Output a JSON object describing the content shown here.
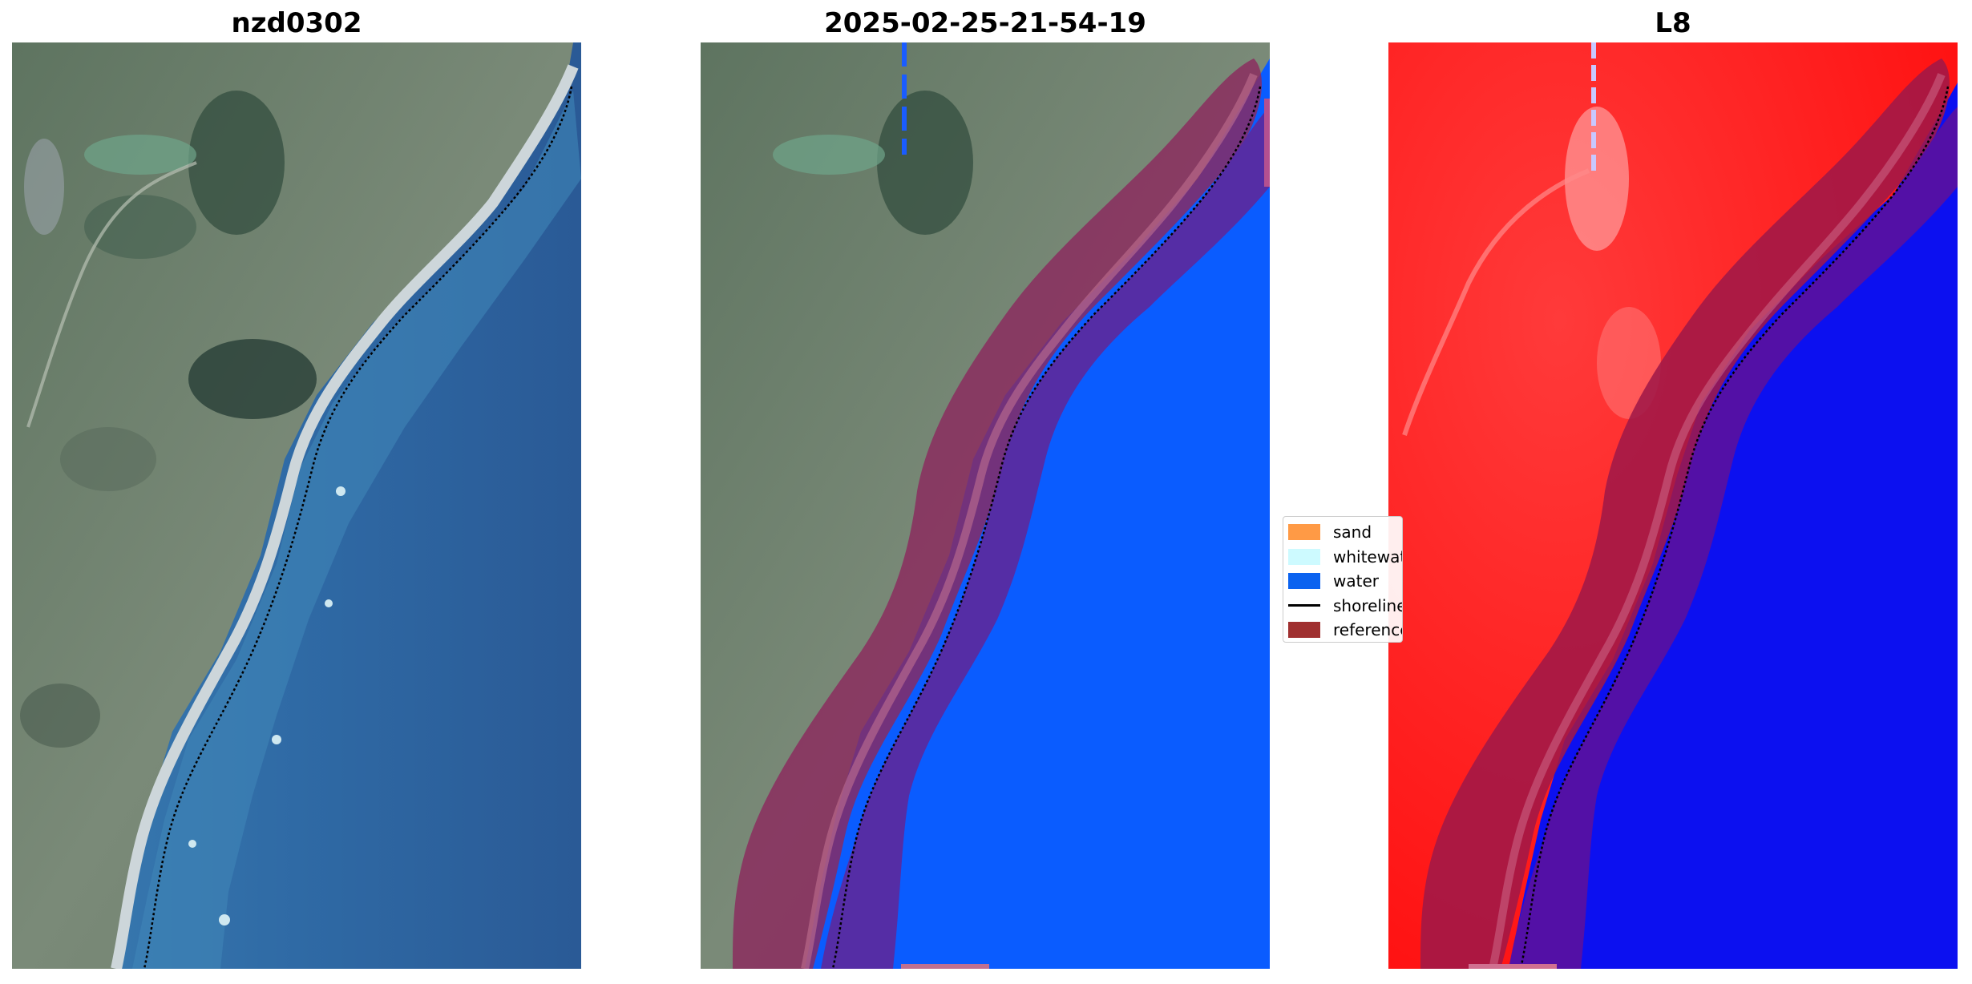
{
  "titles": {
    "panel1": "nzd0302",
    "panel2": "2025-02-25-21-54-19",
    "panel3": "L8"
  },
  "legend": {
    "items": [
      {
        "label": "sand",
        "kind": "swatch",
        "color": "#ff9a45"
      },
      {
        "label": "whitewater",
        "kind": "swatch",
        "color": "#cdfaff"
      },
      {
        "label": "water",
        "kind": "swatch",
        "color": "#0b63f0"
      },
      {
        "label": "shoreline",
        "kind": "line",
        "color": "#000000"
      },
      {
        "label": "reference",
        "kind": "swatch",
        "color": "#a03030"
      }
    ]
  },
  "colors": {
    "ocean_deep": "#2a5a96",
    "ocean_shallow": "#3d7fb0",
    "land": "#6b7d68",
    "beach": "#c8d0d4",
    "water_class": "#0a5cff",
    "reference_band": "#8b2a5e",
    "overlap_purple": "#5a2aa0",
    "index_land": "#ff1a1a",
    "index_water": "#0c10f0"
  }
}
